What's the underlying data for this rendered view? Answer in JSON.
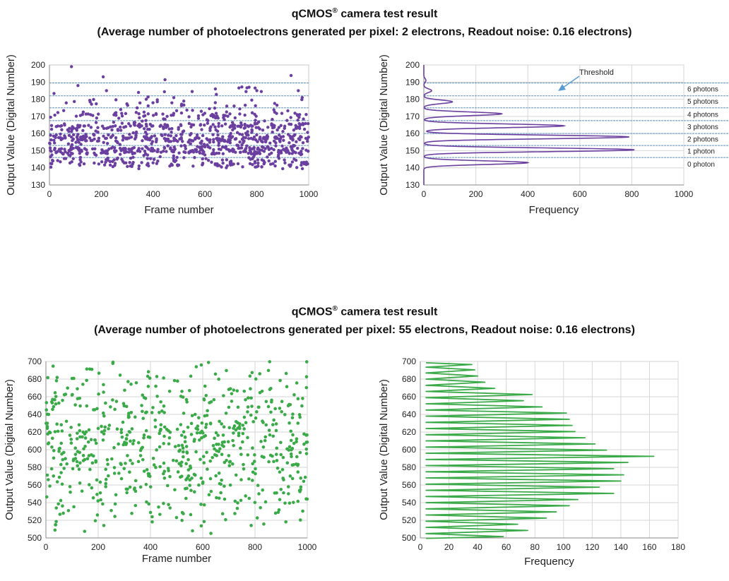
{
  "sections": [
    {
      "title_main": "qCMOS",
      "title_reg": "®",
      "title_rest": " camera test result",
      "subtitle": "(Average number of photoelectrons generated per pixel: 2 electrons, Readout noise: 0.16 electrons)"
    },
    {
      "title_main": "qCMOS",
      "title_reg": "®",
      "title_rest": " camera test result",
      "subtitle": "(Average number of photoelectrons generated per pixel: 55 electrons, Readout noise: 0.16 electrons)"
    }
  ],
  "colors": {
    "purple": "#6b3fa0",
    "green": "#3aaa48",
    "threshold_line": "#5b8fc0",
    "grid": "#d0d0d0",
    "arrow": "#5b9bd5"
  },
  "chart_data": [
    {
      "type": "scatter",
      "xlabel": "Frame number",
      "ylabel": "Output Value (Digital Number)",
      "xlim": [
        0,
        1000
      ],
      "ylim": [
        130,
        200
      ],
      "xticks": [
        0,
        200,
        400,
        600,
        800,
        1000
      ],
      "yticks": [
        130,
        140,
        150,
        160,
        170,
        180,
        190,
        200
      ],
      "grid": "horizontal-dashed",
      "color": "#6b3fa0",
      "thresholds": [
        146,
        153,
        160,
        167.5,
        175,
        182,
        189.5
      ],
      "points_model": {
        "n": 1000,
        "levels": [
          {
            "center": 143,
            "count": 140
          },
          {
            "center": 150,
            "count": 270
          },
          {
            "center": 157,
            "count": 270
          },
          {
            "center": 164,
            "count": 180
          },
          {
            "center": 171,
            "count": 90
          },
          {
            "center": 178,
            "count": 35
          },
          {
            "center": 185,
            "count": 12
          },
          {
            "center": 192,
            "count": 3
          }
        ],
        "spread": 1.6
      },
      "outliers": [
        [
          85,
          199
        ],
        [
          110,
          188
        ],
        [
          220,
          185
        ],
        [
          640,
          186
        ],
        [
          770,
          187
        ],
        [
          960,
          185
        ],
        [
          975,
          181
        ]
      ]
    },
    {
      "type": "line",
      "xlabel": "Frequency",
      "ylabel": "Output Value (Digital Number)",
      "xlim": [
        0,
        1000
      ],
      "ylim": [
        130,
        200
      ],
      "xticks": [
        0,
        200,
        400,
        600,
        800,
        1000
      ],
      "yticks": [
        130,
        140,
        150,
        160,
        170,
        180,
        190,
        200
      ],
      "grid": "both",
      "color": "#6b3fa0",
      "peaks": [
        {
          "y": 143,
          "freq": 400
        },
        {
          "y": 150.5,
          "freq": 810
        },
        {
          "y": 158,
          "freq": 790
        },
        {
          "y": 164.5,
          "freq": 540
        },
        {
          "y": 171.5,
          "freq": 300
        },
        {
          "y": 178.5,
          "freq": 110
        },
        {
          "y": 185,
          "freq": 30
        },
        {
          "y": 191,
          "freq": 8
        }
      ],
      "thresholds": [
        146,
        153,
        160,
        167.5,
        175,
        182,
        189.5
      ],
      "annotation": "Threshold",
      "photon_labels": [
        {
          "text": "0 photon",
          "y": 142
        },
        {
          "text": "1 photon",
          "y": 149.5
        },
        {
          "text": "2 photons",
          "y": 156.5
        },
        {
          "text": "3 photons",
          "y": 163.8
        },
        {
          "text": "4 photons",
          "y": 171
        },
        {
          "text": "5 photons",
          "y": 178.5
        },
        {
          "text": "6 photons",
          "y": 185.8
        }
      ]
    },
    {
      "type": "scatter",
      "xlabel": "Frame number",
      "ylabel": "Output Value (Digital Number)",
      "xlim": [
        0,
        1000
      ],
      "ylim": [
        500,
        700
      ],
      "xticks": [
        0,
        200,
        400,
        600,
        800,
        1000
      ],
      "yticks": [
        500,
        520,
        540,
        560,
        580,
        600,
        620,
        640,
        660,
        680,
        700
      ],
      "grid": "both",
      "color": "#3aaa48",
      "points_model": {
        "n": 700,
        "mean": 600,
        "spread": 50
      }
    },
    {
      "type": "line",
      "xlabel": "Frequency",
      "ylabel": "Output Value (Digital Number)",
      "xlim": [
        0,
        180
      ],
      "ylim": [
        500,
        700
      ],
      "xticks": [
        0,
        20,
        40,
        60,
        80,
        100,
        120,
        140,
        160,
        180
      ],
      "yticks": [
        500,
        520,
        540,
        560,
        580,
        600,
        620,
        640,
        660,
        680,
        700
      ],
      "grid": "both",
      "color": "#3aaa48",
      "peaks": [
        {
          "y": 501.5,
          "freq": 58
        },
        {
          "y": 508.5,
          "freq": 75
        },
        {
          "y": 515.5,
          "freq": 68
        },
        {
          "y": 522.5,
          "freq": 88
        },
        {
          "y": 529.5,
          "freq": 95
        },
        {
          "y": 536.5,
          "freq": 104
        },
        {
          "y": 543.5,
          "freq": 110
        },
        {
          "y": 550.5,
          "freq": 135
        },
        {
          "y": 557.5,
          "freq": 125
        },
        {
          "y": 564.5,
          "freq": 140
        },
        {
          "y": 571.5,
          "freq": 142
        },
        {
          "y": 578.5,
          "freq": 135
        },
        {
          "y": 585.5,
          "freq": 145
        },
        {
          "y": 592.5,
          "freq": 163
        },
        {
          "y": 599.5,
          "freq": 130
        },
        {
          "y": 606.5,
          "freq": 122
        },
        {
          "y": 613.5,
          "freq": 115
        },
        {
          "y": 620.5,
          "freq": 108
        },
        {
          "y": 627.5,
          "freq": 106
        },
        {
          "y": 634.5,
          "freq": 104
        },
        {
          "y": 641.5,
          "freq": 102
        },
        {
          "y": 648.5,
          "freq": 85
        },
        {
          "y": 655.5,
          "freq": 72
        },
        {
          "y": 662.5,
          "freq": 78
        },
        {
          "y": 669.5,
          "freq": 52
        },
        {
          "y": 676.5,
          "freq": 45
        },
        {
          "y": 683.5,
          "freq": 40
        },
        {
          "y": 690.5,
          "freq": 38
        },
        {
          "y": 696.5,
          "freq": 36
        }
      ]
    }
  ]
}
